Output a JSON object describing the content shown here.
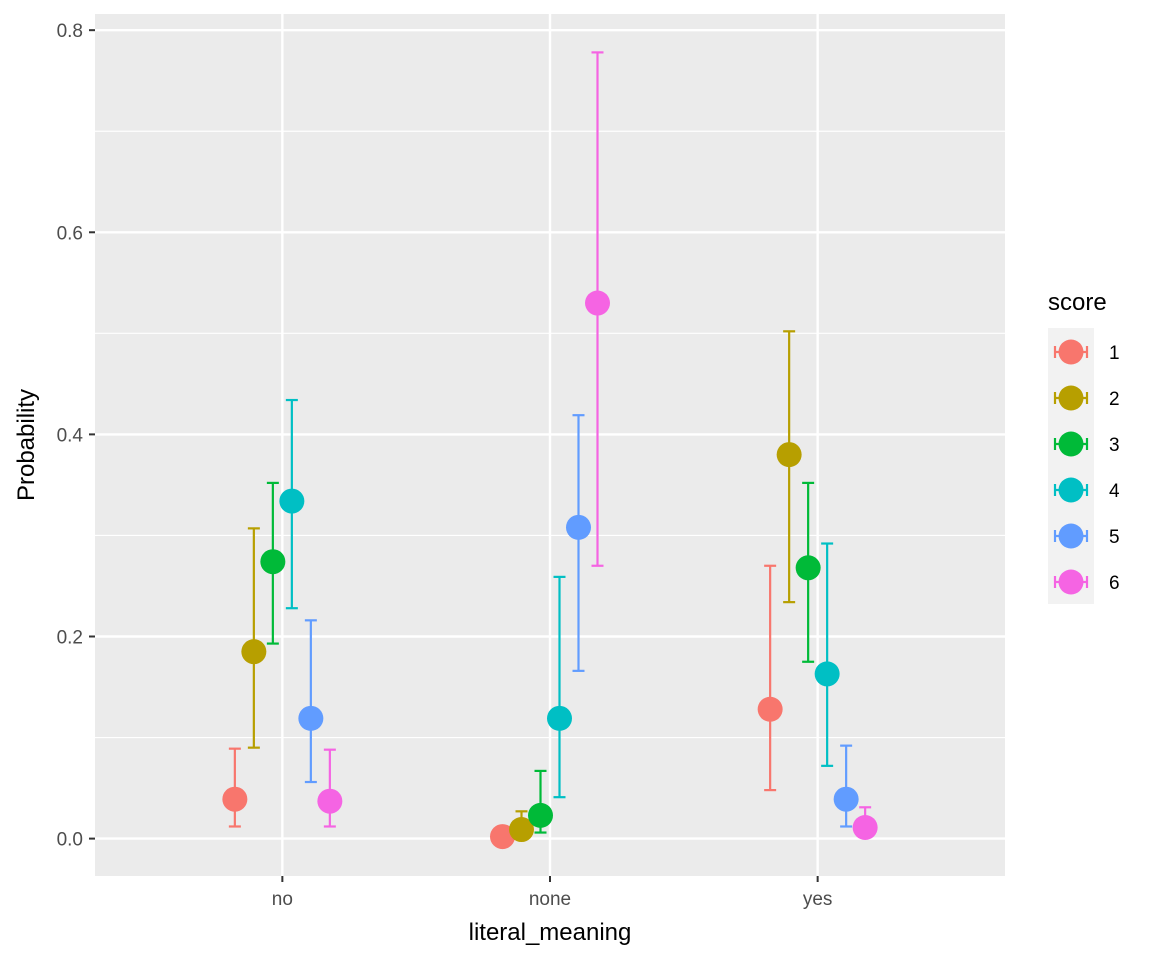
{
  "chart_data": {
    "type": "scatter",
    "subtype": "pointrange-dodged",
    "title": "",
    "xlabel": "literal_meaning",
    "ylabel": "Probability",
    "categories": [
      "no",
      "none",
      "yes"
    ],
    "ylim": [
      -0.037,
      0.816
    ],
    "yticks": [
      0.0,
      0.2,
      0.4,
      0.6,
      0.8
    ],
    "ytick_labels": [
      "0.0",
      "0.2",
      "0.4",
      "0.6",
      "0.8"
    ],
    "grid": true,
    "legend": {
      "title": "score",
      "position": "right"
    },
    "series": [
      {
        "name": "1",
        "color": "#F8766D",
        "values": [
          0.039,
          0.002,
          0.128
        ],
        "lower": [
          0.012,
          0.0,
          0.048
        ],
        "upper": [
          0.089,
          0.004,
          0.27
        ]
      },
      {
        "name": "2",
        "color": "#B79F00",
        "values": [
          0.185,
          0.009,
          0.38
        ],
        "lower": [
          0.09,
          0.002,
          0.234
        ],
        "upper": [
          0.307,
          0.027,
          0.502
        ]
      },
      {
        "name": "3",
        "color": "#00BA38",
        "values": [
          0.274,
          0.023,
          0.268
        ],
        "lower": [
          0.193,
          0.006,
          0.175
        ],
        "upper": [
          0.352,
          0.067,
          0.352
        ]
      },
      {
        "name": "4",
        "color": "#00BFC4",
        "values": [
          0.334,
          0.119,
          0.163
        ],
        "lower": [
          0.228,
          0.041,
          0.072
        ],
        "upper": [
          0.434,
          0.259,
          0.292
        ]
      },
      {
        "name": "5",
        "color": "#619CFF",
        "values": [
          0.119,
          0.308,
          0.039
        ],
        "lower": [
          0.056,
          0.166,
          0.012
        ],
        "upper": [
          0.216,
          0.419,
          0.092
        ]
      },
      {
        "name": "6",
        "color": "#F564E3",
        "values": [
          0.037,
          0.53,
          0.011
        ],
        "lower": [
          0.012,
          0.27,
          0.002
        ],
        "upper": [
          0.088,
          0.778,
          0.031
        ]
      }
    ]
  }
}
